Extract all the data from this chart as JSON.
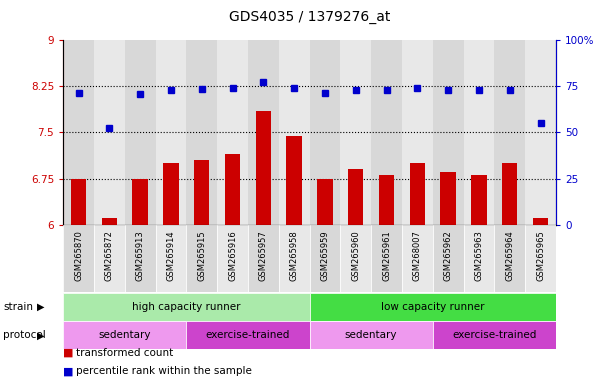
{
  "title": "GDS4035 / 1379276_at",
  "samples": [
    "GSM265870",
    "GSM265872",
    "GSM265913",
    "GSM265914",
    "GSM265915",
    "GSM265916",
    "GSM265957",
    "GSM265958",
    "GSM265959",
    "GSM265960",
    "GSM265961",
    "GSM268007",
    "GSM265962",
    "GSM265963",
    "GSM265964",
    "GSM265965"
  ],
  "bar_values": [
    6.75,
    6.1,
    6.75,
    7.0,
    7.05,
    7.15,
    7.85,
    7.45,
    6.75,
    6.9,
    6.8,
    7.0,
    6.85,
    6.8,
    7.0,
    6.1
  ],
  "dot_values": [
    8.15,
    7.58,
    8.13,
    8.19,
    8.2,
    8.22,
    8.32,
    8.22,
    8.15,
    8.19,
    8.19,
    8.22,
    8.19,
    8.19,
    8.19,
    7.65
  ],
  "bar_color": "#cc0000",
  "dot_color": "#0000cc",
  "ylim_left": [
    6,
    9
  ],
  "ylim_right": [
    0,
    100
  ],
  "yticks_left": [
    6,
    6.75,
    7.5,
    8.25,
    9
  ],
  "yticks_right": [
    0,
    25,
    50,
    75,
    100
  ],
  "ytick_labels_left": [
    "6",
    "6.75",
    "7.5",
    "8.25",
    "9"
  ],
  "ytick_labels_right": [
    "0",
    "25",
    "50",
    "75",
    "100%"
  ],
  "hlines": [
    6.75,
    7.5,
    8.25
  ],
  "strain_groups": [
    {
      "label": "high capacity runner",
      "start": 0,
      "end": 8,
      "color": "#aaeaaa"
    },
    {
      "label": "low capacity runner",
      "start": 8,
      "end": 16,
      "color": "#44dd44"
    }
  ],
  "protocol_groups": [
    {
      "label": "sedentary",
      "start": 0,
      "end": 4,
      "color": "#ee99ee"
    },
    {
      "label": "exercise-trained",
      "start": 4,
      "end": 8,
      "color": "#cc44cc"
    },
    {
      "label": "sedentary",
      "start": 8,
      "end": 12,
      "color": "#ee99ee"
    },
    {
      "label": "exercise-trained",
      "start": 12,
      "end": 16,
      "color": "#cc44cc"
    }
  ],
  "legend_items": [
    {
      "label": "transformed count",
      "color": "#cc0000"
    },
    {
      "label": "percentile rank within the sample",
      "color": "#0000cc"
    }
  ],
  "plot_bg": "#ffffff",
  "title_fontsize": 10,
  "tick_fontsize": 7.5,
  "label_fontsize": 8,
  "xtick_bg_colors": [
    "#d8d8d8",
    "#e8e8e8"
  ]
}
